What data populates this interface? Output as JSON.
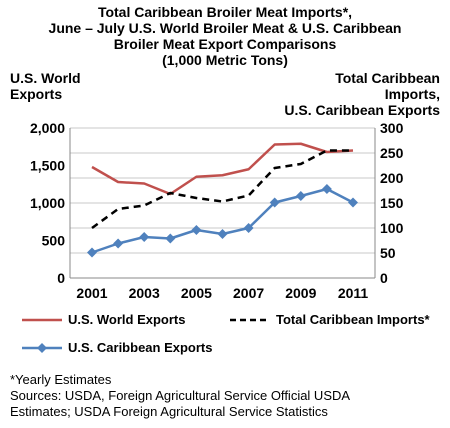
{
  "chart_data": {
    "type": "line",
    "title_lines": [
      "Total Caribbean Broiler Meat Imports*,",
      "June – July U.S. World Broiler Meat & U.S. Caribbean",
      "Broiler Meat Export Comparisons",
      "(1,000 Metric Tons)"
    ],
    "left_axis_label_lines": [
      "U.S. World",
      "Exports"
    ],
    "right_axis_label_lines": [
      "Total Caribbean",
      "Imports,",
      "U.S. Caribbean Exports"
    ],
    "x": [
      2001,
      2002,
      2003,
      2004,
      2005,
      2006,
      2007,
      2008,
      2009,
      2010,
      2011
    ],
    "x_tick_labels": [
      "2001",
      "2003",
      "2005",
      "2007",
      "2009",
      "2011"
    ],
    "left_ylim": [
      0,
      2000
    ],
    "left_ticks": [
      "0",
      "500",
      "1,000",
      "1,500",
      "2,000"
    ],
    "right_ylim": [
      0,
      300
    ],
    "right_ticks": [
      "0",
      "50",
      "100",
      "150",
      "200",
      "250",
      "300"
    ],
    "grid": true,
    "series": [
      {
        "name": "U.S. World Exports",
        "axis": "left",
        "color": "#c0504d",
        "style": "solid",
        "values": [
          1480,
          1280,
          1260,
          1120,
          1350,
          1370,
          1450,
          1780,
          1790,
          1680,
          1700
        ]
      },
      {
        "name": "Total Caribbean Imports*",
        "axis": "right",
        "color": "#000000",
        "style": "dashed",
        "values": [
          100,
          138,
          145,
          170,
          160,
          153,
          165,
          220,
          228,
          255,
          255
        ]
      },
      {
        "name": "U.S. Caribbean Exports",
        "axis": "right",
        "color": "#4f81bd",
        "style": "solid-marker",
        "values": [
          51,
          69,
          82,
          79,
          96,
          88,
          100,
          151,
          164,
          178,
          151
        ]
      }
    ]
  },
  "footnote": {
    "line1": "*Yearly Estimates",
    "line2": "Sources: USDA, Foreign Agricultural Service Official USDA",
    "line3": "Estimates; USDA Foreign Agricultural Service Statistics"
  }
}
